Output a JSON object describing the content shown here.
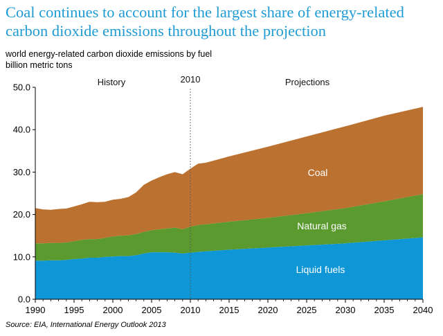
{
  "title": "Coal continues to account for the largest share of energy-related carbon dioxide emissions throughout the projection",
  "subtitle": "world energy-related carbon dioxide emissions by fuel",
  "units": "billion metric tons",
  "source": "Source:  EIA, International Energy Outlook 2013",
  "chart_data": {
    "type": "area",
    "stacked": true,
    "x": [
      1990,
      1991,
      1992,
      1993,
      1994,
      1995,
      1996,
      1997,
      1998,
      1999,
      2000,
      2001,
      2002,
      2003,
      2004,
      2005,
      2006,
      2007,
      2008,
      2009,
      2010,
      2011,
      2012,
      2015,
      2020,
      2025,
      2030,
      2035,
      2040
    ],
    "series": [
      {
        "name": "Liquid fuels",
        "color": "#0f96d6",
        "values": [
          9.1,
          9.1,
          9.2,
          9.2,
          9.3,
          9.5,
          9.6,
          9.8,
          9.8,
          10.0,
          10.1,
          10.2,
          10.2,
          10.4,
          10.8,
          11.1,
          11.1,
          11.1,
          11.0,
          10.8,
          11.0,
          11.2,
          11.3,
          11.7,
          12.2,
          12.7,
          13.2,
          13.9,
          14.6
        ]
      },
      {
        "name": "Natural gas",
        "color": "#5b9a2f",
        "values": [
          4.1,
          4.1,
          4.1,
          4.1,
          4.1,
          4.2,
          4.4,
          4.4,
          4.4,
          4.5,
          4.7,
          4.8,
          4.9,
          5.0,
          5.1,
          5.2,
          5.4,
          5.6,
          5.9,
          5.7,
          6.1,
          6.3,
          6.4,
          6.6,
          7.0,
          7.6,
          8.3,
          9.2,
          10.2
        ]
      },
      {
        "name": "Coal",
        "color": "#bb7230",
        "values": [
          8.3,
          8.0,
          7.8,
          8.0,
          8.0,
          8.2,
          8.4,
          8.8,
          8.7,
          8.5,
          8.7,
          8.7,
          9.0,
          9.8,
          11.1,
          11.7,
          12.3,
          12.8,
          13.1,
          13.0,
          13.7,
          14.5,
          14.5,
          15.4,
          16.8,
          18.1,
          19.3,
          20.2,
          20.6
        ]
      }
    ],
    "xlim": [
      1990,
      2040
    ],
    "ylim": [
      0,
      50
    ],
    "xticks": [
      1990,
      1995,
      2000,
      2005,
      2010,
      2015,
      2020,
      2025,
      2030,
      2035,
      2040
    ],
    "yticks": [
      "0.0",
      "10.0",
      "20.0",
      "30.0",
      "40.0",
      "50.0"
    ],
    "divider_year": 2010,
    "annotations": {
      "history": "History",
      "projections": "Projections",
      "divider_label": "2010"
    }
  }
}
